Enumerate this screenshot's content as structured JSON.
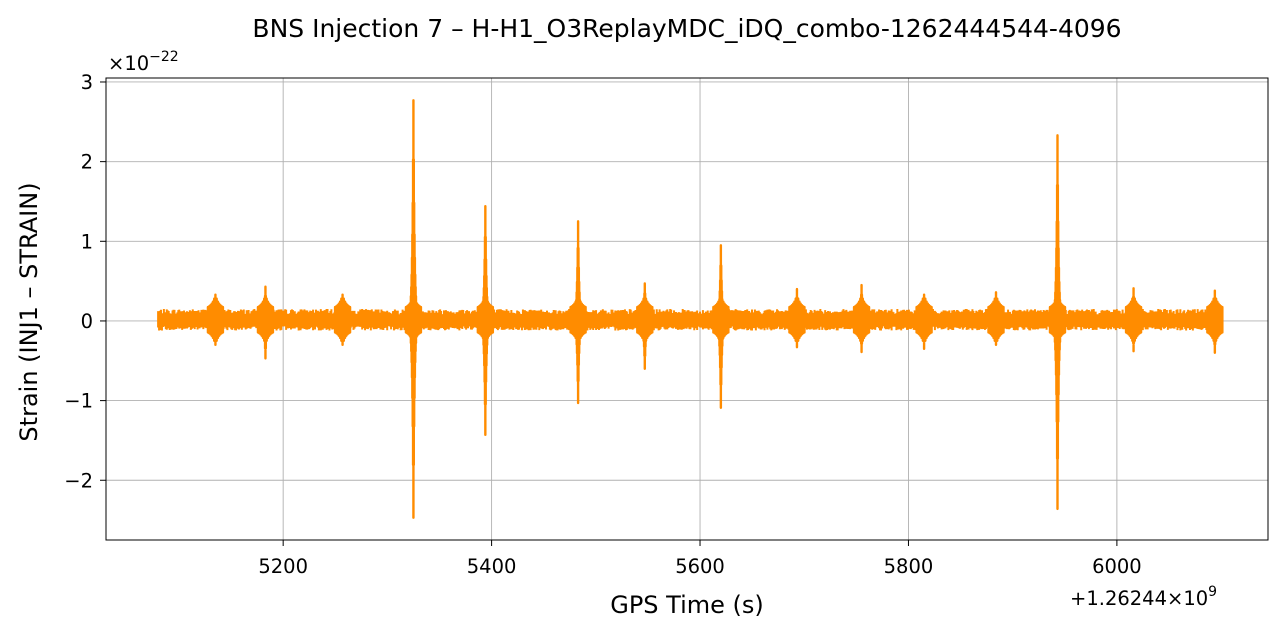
{
  "chart_data": {
    "type": "line",
    "title": "BNS Injection 7 – H-H1_O3ReplayMDC_iDQ_combo-1262444544-4096",
    "xlabel": "GPS Time (s)",
    "ylabel": "Strain (INJ1 – STRAIN)",
    "x_offset_label": "+1.26244×10",
    "x_offset_exp": "9",
    "y_multiplier_label": "×10",
    "y_multiplier_exp": "−22",
    "xlim": [
      5030,
      6145
    ],
    "ylim": [
      -2.75,
      3.05
    ],
    "x_ticks": [
      5200,
      5400,
      5600,
      5800,
      6000
    ],
    "x_tick_labels": [
      "5200",
      "5400",
      "5600",
      "5800",
      "6000"
    ],
    "y_ticks": [
      -2,
      -1,
      0,
      1,
      2,
      3
    ],
    "y_tick_labels": [
      "−2",
      "−1",
      "0",
      "1",
      "2",
      "3"
    ],
    "grid": true,
    "series": [
      {
        "color": "#ff8c00",
        "x_range": [
          5080,
          6096
        ],
        "noise_band": [
          -0.12,
          0.15
        ],
        "spikes": [
          {
            "x": 5135,
            "ymax": 0.3,
            "ymin": -0.2
          },
          {
            "x": 5183,
            "ymax": 0.43,
            "ymin": -0.47
          },
          {
            "x": 5257,
            "ymax": 0.28,
            "ymin": -0.28
          },
          {
            "x": 5325,
            "ymax": 2.77,
            "ymin": -2.47
          },
          {
            "x": 5394,
            "ymax": 1.44,
            "ymin": -1.43
          },
          {
            "x": 5483,
            "ymax": 1.25,
            "ymin": -1.03
          },
          {
            "x": 5547,
            "ymax": 0.47,
            "ymin": -0.6
          },
          {
            "x": 5620,
            "ymax": 0.95,
            "ymin": -1.09
          },
          {
            "x": 5693,
            "ymax": 0.4,
            "ymin": -0.33
          },
          {
            "x": 5755,
            "ymax": 0.45,
            "ymin": -0.39
          },
          {
            "x": 5815,
            "ymax": 0.28,
            "ymin": -0.35
          },
          {
            "x": 5884,
            "ymax": 0.36,
            "ymin": -0.28
          },
          {
            "x": 5943,
            "ymax": 2.33,
            "ymin": -2.36
          },
          {
            "x": 6016,
            "ymax": 0.41,
            "ymin": -0.38
          },
          {
            "x": 6094,
            "ymax": 0.38,
            "ymin": -0.4
          }
        ]
      }
    ]
  }
}
